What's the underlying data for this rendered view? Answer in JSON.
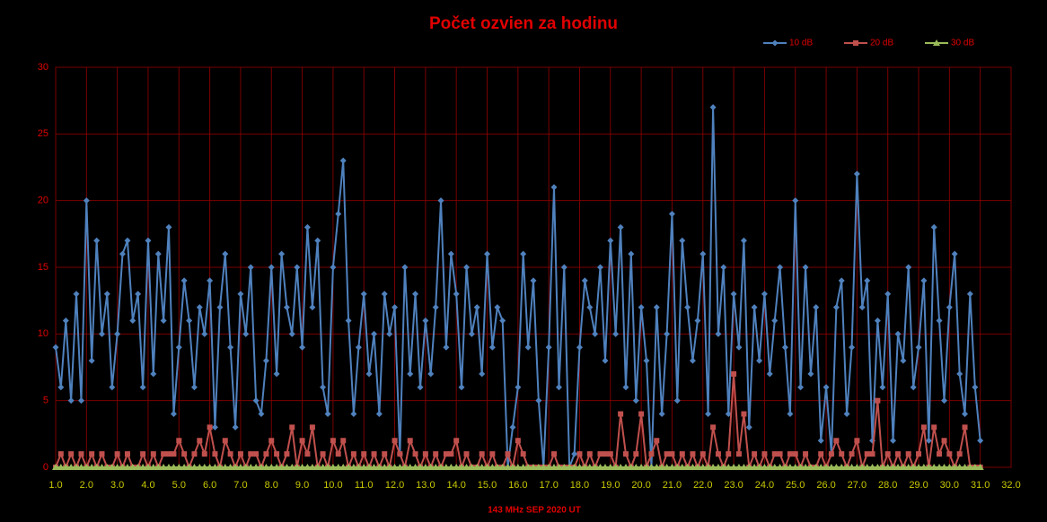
{
  "chart_data": {
    "type": "line",
    "title": "Počet ozvien za hodinu",
    "x_label": "143 MHz SEP  2020  UT",
    "legend": "top-right",
    "grid": true,
    "xlim": [
      1,
      32
    ],
    "ylim": [
      0,
      30
    ],
    "yticks": [
      0,
      5,
      10,
      15,
      20,
      25,
      30
    ],
    "xticks": [
      {
        "value": 1,
        "label": "1.0"
      },
      {
        "value": 2,
        "label": "2.0"
      },
      {
        "value": 3,
        "label": "3.0"
      },
      {
        "value": 4,
        "label": "4.0"
      },
      {
        "value": 5,
        "label": "5.0"
      },
      {
        "value": 6,
        "label": "6.0"
      },
      {
        "value": 7,
        "label": "7.0"
      },
      {
        "value": 8,
        "label": "8.0"
      },
      {
        "value": 9,
        "label": "9.0"
      },
      {
        "value": 10,
        "label": "10.0"
      },
      {
        "value": 11,
        "label": "11.0"
      },
      {
        "value": 12,
        "label": "12.0"
      },
      {
        "value": 13,
        "label": "13.0"
      },
      {
        "value": 14,
        "label": "14.0"
      },
      {
        "value": 15,
        "label": "15.0"
      },
      {
        "value": 16,
        "label": "16.0"
      },
      {
        "value": 17,
        "label": "17.0"
      },
      {
        "value": 18,
        "label": "18.0"
      },
      {
        "value": 19,
        "label": "19.0"
      },
      {
        "value": 20,
        "label": "20.0"
      },
      {
        "value": 21,
        "label": "21.0"
      },
      {
        "value": 22,
        "label": "22.0"
      },
      {
        "value": 23,
        "label": "23.0"
      },
      {
        "value": 24,
        "label": "24.0"
      },
      {
        "value": 25,
        "label": "25.0"
      },
      {
        "value": 26,
        "label": "26.0"
      },
      {
        "value": 27,
        "label": "27.0"
      },
      {
        "value": 28,
        "label": "28.0"
      },
      {
        "value": 29,
        "label": "29.0"
      },
      {
        "value": 30,
        "label": "30.0"
      },
      {
        "value": 31,
        "label": "31.0"
      },
      {
        "value": 32,
        "label": "32.0"
      }
    ],
    "x": [
      1,
      1.17,
      1.33,
      1.5,
      1.67,
      1.83,
      2,
      2.17,
      2.33,
      2.5,
      2.67,
      2.83,
      3,
      3.17,
      3.33,
      3.5,
      3.67,
      3.83,
      4,
      4.17,
      4.33,
      4.5,
      4.67,
      4.83,
      5,
      5.17,
      5.33,
      5.5,
      5.67,
      5.83,
      6,
      6.17,
      6.33,
      6.5,
      6.67,
      6.83,
      7,
      7.17,
      7.33,
      7.5,
      7.67,
      7.83,
      8,
      8.17,
      8.33,
      8.5,
      8.67,
      8.83,
      9,
      9.17,
      9.33,
      9.5,
      9.67,
      9.83,
      10,
      10.17,
      10.33,
      10.5,
      10.67,
      10.83,
      11,
      11.17,
      11.33,
      11.5,
      11.67,
      11.83,
      12,
      12.17,
      12.33,
      12.5,
      12.67,
      12.83,
      13,
      13.17,
      13.33,
      13.5,
      13.67,
      13.83,
      14,
      14.17,
      14.33,
      14.5,
      14.67,
      14.83,
      15,
      15.17,
      15.33,
      15.5,
      15.67,
      15.83,
      16,
      16.17,
      16.33,
      16.5,
      16.67,
      16.83,
      17,
      17.17,
      17.33,
      17.5,
      17.67,
      17.83,
      18,
      18.17,
      18.33,
      18.5,
      18.67,
      18.83,
      19,
      19.17,
      19.33,
      19.5,
      19.67,
      19.83,
      20,
      20.17,
      20.33,
      20.5,
      20.67,
      20.83,
      21,
      21.17,
      21.33,
      21.5,
      21.67,
      21.83,
      22,
      22.17,
      22.33,
      22.5,
      22.67,
      22.83,
      23,
      23.17,
      23.33,
      23.5,
      23.67,
      23.83,
      24,
      24.17,
      24.33,
      24.5,
      24.67,
      24.83,
      25,
      25.17,
      25.33,
      25.5,
      25.67,
      25.83,
      26,
      26.17,
      26.33,
      26.5,
      26.67,
      26.83,
      27,
      27.17,
      27.33,
      27.5,
      27.67,
      27.83,
      28,
      28.17,
      28.33,
      28.5,
      28.67,
      28.83,
      29,
      29.17,
      29.33,
      29.5,
      29.67,
      29.83,
      30,
      30.17,
      30.33,
      30.5,
      30.67,
      30.83,
      31
    ],
    "series": [
      {
        "name": "10 dB",
        "color": "#4f81bd",
        "marker": "diamond",
        "values": [
          9,
          6,
          11,
          5,
          13,
          5,
          20,
          8,
          17,
          10,
          13,
          6,
          10,
          16,
          17,
          11,
          13,
          6,
          17,
          7,
          16,
          11,
          18,
          4,
          9,
          14,
          11,
          6,
          12,
          10,
          14,
          3,
          12,
          16,
          9,
          3,
          13,
          10,
          15,
          5,
          4,
          8,
          15,
          7,
          16,
          12,
          10,
          15,
          9,
          18,
          12,
          17,
          6,
          4,
          15,
          19,
          23,
          11,
          4,
          9,
          13,
          7,
          10,
          4,
          13,
          10,
          12,
          1,
          15,
          7,
          13,
          6,
          11,
          7,
          12,
          20,
          9,
          16,
          13,
          6,
          15,
          10,
          12,
          7,
          16,
          9,
          12,
          11,
          0,
          3,
          6,
          16,
          9,
          14,
          5,
          0,
          9,
          21,
          6,
          15,
          0,
          1,
          9,
          14,
          12,
          10,
          15,
          8,
          17,
          10,
          18,
          6,
          16,
          5,
          12,
          8,
          0,
          12,
          4,
          10,
          19,
          5,
          17,
          12,
          8,
          11,
          16,
          4,
          27,
          10,
          15,
          4,
          13,
          9,
          17,
          3,
          12,
          8,
          13,
          7,
          11,
          15,
          9,
          4,
          20,
          6,
          15,
          7,
          12,
          2,
          6,
          1,
          12,
          14,
          4,
          9,
          22,
          12,
          14,
          2,
          11,
          6,
          13,
          2,
          10,
          8,
          15,
          6,
          9,
          14,
          2,
          18,
          11,
          5,
          12,
          16,
          7,
          4,
          13,
          6,
          2
        ]
      },
      {
        "name": "20 dB",
        "color": "#c0504d",
        "marker": "square",
        "values": [
          0,
          1,
          0,
          1,
          0,
          1,
          0,
          1,
          0,
          1,
          0,
          0,
          1,
          0,
          1,
          0,
          0,
          1,
          0,
          1,
          0,
          1,
          1,
          1,
          2,
          1,
          0,
          1,
          2,
          1,
          3,
          1,
          0,
          2,
          1,
          0,
          1,
          0,
          1,
          1,
          0,
          1,
          2,
          1,
          0,
          1,
          3,
          0,
          2,
          1,
          3,
          0,
          1,
          0,
          2,
          1,
          2,
          0,
          1,
          0,
          1,
          0,
          1,
          0,
          1,
          0,
          2,
          1,
          0,
          2,
          1,
          0,
          1,
          0,
          1,
          0,
          1,
          1,
          2,
          0,
          1,
          0,
          0,
          1,
          0,
          1,
          0,
          0,
          1,
          0,
          2,
          1,
          0,
          0,
          0,
          0,
          0,
          1,
          0,
          0,
          0,
          0,
          1,
          0,
          1,
          0,
          1,
          1,
          1,
          0,
          4,
          1,
          0,
          1,
          4,
          0,
          1,
          2,
          0,
          1,
          1,
          0,
          1,
          0,
          1,
          0,
          1,
          0,
          3,
          1,
          0,
          1,
          7,
          1,
          4,
          0,
          1,
          0,
          1,
          0,
          1,
          1,
          0,
          1,
          1,
          0,
          1,
          0,
          0,
          1,
          0,
          1,
          2,
          1,
          0,
          1,
          2,
          0,
          1,
          1,
          5,
          0,
          1,
          0,
          1,
          0,
          1,
          0,
          1,
          3,
          0,
          3,
          1,
          2,
          1,
          0,
          1,
          3,
          0,
          0,
          0
        ]
      },
      {
        "name": "30 dB",
        "color": "#9bbb59",
        "marker": "triangle",
        "values": [
          0,
          0,
          0,
          0,
          0,
          0,
          0,
          0,
          0,
          0,
          0,
          0,
          0,
          0,
          0,
          0,
          0,
          0,
          0,
          0,
          0,
          0,
          0,
          0,
          0,
          0,
          0,
          0,
          0,
          0,
          0,
          0,
          0,
          0,
          0,
          0,
          0,
          0,
          0,
          0,
          0,
          0,
          0,
          0,
          0,
          0,
          0,
          0,
          0,
          0,
          0,
          0,
          0,
          0,
          0,
          0,
          0,
          0,
          0,
          0,
          0,
          0,
          0,
          0,
          0,
          0,
          0,
          0,
          0,
          0,
          0,
          0,
          0,
          0,
          0,
          0,
          0,
          0,
          0,
          0,
          0,
          0,
          0,
          0,
          0,
          0,
          0,
          0,
          0,
          0,
          0,
          0,
          0,
          0,
          0,
          0,
          0,
          0,
          0,
          0,
          0,
          0,
          0,
          0,
          0,
          0,
          0,
          0,
          0,
          0,
          0,
          0,
          0,
          0,
          0,
          0,
          0,
          0,
          0,
          0,
          0,
          0,
          0,
          0,
          0,
          0,
          0,
          0,
          0,
          0,
          0,
          0,
          0,
          0,
          0,
          0,
          0,
          0,
          0,
          0,
          0,
          0,
          0,
          0,
          0,
          0,
          0,
          0,
          0,
          0,
          0,
          0,
          0,
          0,
          0,
          0,
          0,
          0,
          0,
          0,
          0,
          0,
          0,
          0,
          0,
          0,
          0,
          0,
          0,
          0,
          0,
          0,
          0,
          0,
          0,
          0,
          0,
          0,
          0,
          0,
          0
        ]
      }
    ]
  }
}
